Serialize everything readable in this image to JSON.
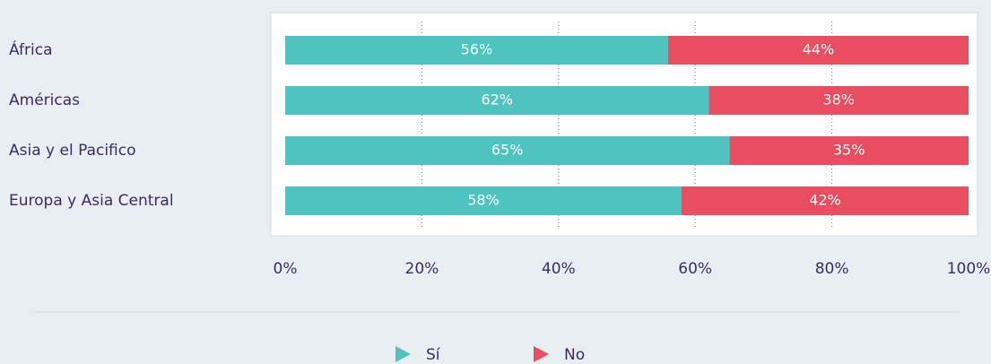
{
  "chart_data": {
    "type": "stacked-bar-horizontal",
    "categories": [
      "África",
      "Américas",
      "Asia y el Pacifico",
      "Europa y Asia Central"
    ],
    "series": [
      {
        "name": "Sí",
        "color": "#4fc3bf",
        "values": [
          56,
          62,
          65,
          58
        ],
        "value_labels": [
          "56%",
          "62%",
          "65%",
          "58%"
        ]
      },
      {
        "name": "No",
        "color": "#e84e5f",
        "values": [
          44,
          38,
          35,
          42
        ],
        "value_labels": [
          "44%",
          "38%",
          "35%",
          "42%"
        ]
      }
    ],
    "xlim": [
      0,
      100
    ],
    "xticks": [
      {
        "value": 0,
        "label": "0%"
      },
      {
        "value": 20,
        "label": "20%"
      },
      {
        "value": 40,
        "label": "40%"
      },
      {
        "value": 60,
        "label": "60%"
      },
      {
        "value": 80,
        "label": "80%"
      },
      {
        "value": 100,
        "label": "100%"
      }
    ],
    "grid": true,
    "legend": "bottom"
  }
}
